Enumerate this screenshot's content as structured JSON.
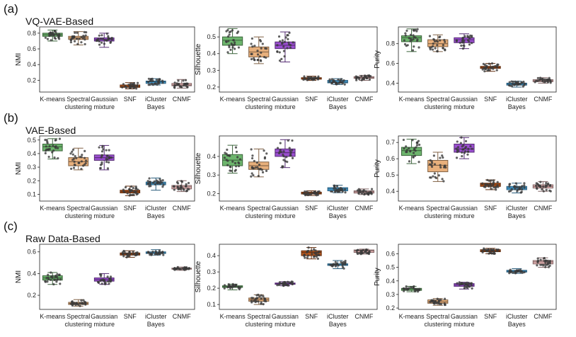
{
  "figure": {
    "rows": [
      {
        "panel": "(a)",
        "title": "VQ-VAE-Based"
      },
      {
        "panel": "(b)",
        "title": "VAE-Based"
      },
      {
        "panel": "(c)",
        "title": "Raw Data-Based"
      }
    ]
  },
  "methods": [
    {
      "line1": "K-means",
      "line2": "",
      "color": "#6db56d"
    },
    {
      "line1": "Spectral",
      "line2": "clustering",
      "color": "#e8b07c"
    },
    {
      "line1": "Gaussian",
      "line2": "mixture",
      "color": "#9b4fd1"
    },
    {
      "line1": "SNF",
      "line2": "",
      "color": "#b5561d"
    },
    {
      "line1": "iCluster",
      "line2": "Bayes",
      "color": "#4aa8e0"
    },
    {
      "line1": "CNMF",
      "line2": "",
      "color": "#eab8b8"
    }
  ],
  "chart_data": [
    {
      "type": "box",
      "title": "VQ-VAE-Based",
      "panel": "(a)",
      "ylabel": "NMI",
      "ylim": [
        0.05,
        0.88
      ],
      "yticks": [
        0.2,
        0.4,
        0.6,
        0.8
      ],
      "boxes": [
        [
          0.7,
          0.76,
          0.78,
          0.8,
          0.84
        ],
        [
          0.65,
          0.72,
          0.74,
          0.76,
          0.82
        ],
        [
          0.62,
          0.7,
          0.72,
          0.74,
          0.8
        ],
        [
          0.09,
          0.11,
          0.12,
          0.14,
          0.17
        ],
        [
          0.14,
          0.16,
          0.18,
          0.19,
          0.22
        ],
        [
          0.1,
          0.13,
          0.14,
          0.16,
          0.21
        ]
      ]
    },
    {
      "type": "box",
      "title": "VQ-VAE-Based",
      "panel": "(a)",
      "ylabel": "Silhouette",
      "ylim": [
        0.17,
        0.56
      ],
      "yticks": [
        0.2,
        0.3,
        0.4,
        0.5
      ],
      "boxes": [
        [
          0.4,
          0.45,
          0.48,
          0.5,
          0.55
        ],
        [
          0.34,
          0.38,
          0.41,
          0.44,
          0.5
        ],
        [
          0.35,
          0.43,
          0.45,
          0.47,
          0.53
        ],
        [
          0.24,
          0.247,
          0.25,
          0.256,
          0.265
        ],
        [
          0.215,
          0.225,
          0.23,
          0.24,
          0.25
        ],
        [
          0.24,
          0.252,
          0.256,
          0.262,
          0.27
        ]
      ]
    },
    {
      "type": "box",
      "title": "VQ-VAE-Based",
      "panel": "(a)",
      "ylabel": "Purity",
      "ylim": [
        0.31,
        0.97
      ],
      "yticks": [
        0.4,
        0.6,
        0.8
      ],
      "boxes": [
        [
          0.72,
          0.82,
          0.86,
          0.88,
          0.95
        ],
        [
          0.72,
          0.77,
          0.8,
          0.84,
          0.89
        ],
        [
          0.75,
          0.81,
          0.84,
          0.86,
          0.9
        ],
        [
          0.52,
          0.55,
          0.56,
          0.57,
          0.6
        ],
        [
          0.36,
          0.38,
          0.39,
          0.4,
          0.42
        ],
        [
          0.4,
          0.415,
          0.425,
          0.435,
          0.455
        ]
      ]
    },
    {
      "type": "box",
      "title": "VAE-Based",
      "panel": "(b)",
      "ylabel": "NMI",
      "ylim": [
        0.05,
        0.53
      ],
      "yticks": [
        0.1,
        0.2,
        0.3,
        0.4,
        0.5
      ],
      "boxes": [
        [
          0.36,
          0.42,
          0.45,
          0.47,
          0.51
        ],
        [
          0.28,
          0.31,
          0.34,
          0.37,
          0.44
        ],
        [
          0.28,
          0.35,
          0.37,
          0.39,
          0.46
        ],
        [
          0.09,
          0.11,
          0.12,
          0.13,
          0.16
        ],
        [
          0.13,
          0.17,
          0.18,
          0.19,
          0.22
        ],
        [
          0.12,
          0.14,
          0.155,
          0.165,
          0.2
        ]
      ]
    },
    {
      "type": "box",
      "title": "VAE-Based",
      "panel": "(b)",
      "ylabel": "Silhouette",
      "ylim": [
        0.16,
        0.51
      ],
      "yticks": [
        0.2,
        0.3,
        0.4
      ],
      "boxes": [
        [
          0.31,
          0.35,
          0.38,
          0.41,
          0.46
        ],
        [
          0.29,
          0.33,
          0.35,
          0.37,
          0.44
        ],
        [
          0.34,
          0.4,
          0.42,
          0.44,
          0.49
        ],
        [
          0.19,
          0.198,
          0.202,
          0.208,
          0.215
        ],
        [
          0.205,
          0.215,
          0.225,
          0.232,
          0.245
        ],
        [
          0.195,
          0.203,
          0.21,
          0.215,
          0.225
        ]
      ]
    },
    {
      "type": "box",
      "title": "VAE-Based",
      "panel": "(b)",
      "ylabel": "Purity",
      "ylim": [
        0.34,
        0.74
      ],
      "yticks": [
        0.4,
        0.5,
        0.6,
        0.7
      ],
      "boxes": [
        [
          0.57,
          0.62,
          0.65,
          0.67,
          0.72
        ],
        [
          0.46,
          0.52,
          0.56,
          0.59,
          0.64
        ],
        [
          0.6,
          0.64,
          0.66,
          0.69,
          0.73
        ],
        [
          0.41,
          0.43,
          0.44,
          0.45,
          0.47
        ],
        [
          0.39,
          0.41,
          0.42,
          0.43,
          0.45
        ],
        [
          0.4,
          0.42,
          0.43,
          0.44,
          0.46
        ]
      ]
    },
    {
      "type": "box",
      "title": "Raw Data-Based",
      "panel": "(c)",
      "ylabel": "NMI",
      "ylim": [
        0.07,
        0.67
      ],
      "yticks": [
        0.2,
        0.4,
        0.6
      ],
      "boxes": [
        [
          0.3,
          0.34,
          0.36,
          0.38,
          0.41
        ],
        [
          0.1,
          0.115,
          0.125,
          0.135,
          0.16
        ],
        [
          0.3,
          0.33,
          0.345,
          0.36,
          0.4
        ],
        [
          0.55,
          0.57,
          0.58,
          0.59,
          0.61
        ],
        [
          0.57,
          0.585,
          0.59,
          0.6,
          0.62
        ],
        [
          0.43,
          0.44,
          0.445,
          0.45,
          0.46
        ]
      ]
    },
    {
      "type": "box",
      "title": "Raw Data-Based",
      "panel": "(c)",
      "ylabel": "Silhouette",
      "ylim": [
        0.07,
        0.47
      ],
      "yticks": [
        0.1,
        0.2,
        0.3,
        0.4
      ],
      "boxes": [
        [
          0.19,
          0.205,
          0.21,
          0.215,
          0.225
        ],
        [
          0.1,
          0.12,
          0.13,
          0.14,
          0.16
        ],
        [
          0.215,
          0.224,
          0.228,
          0.232,
          0.24
        ],
        [
          0.38,
          0.4,
          0.42,
          0.43,
          0.45
        ],
        [
          0.32,
          0.34,
          0.345,
          0.35,
          0.37
        ],
        [
          0.41,
          0.42,
          0.43,
          0.435,
          0.44
        ]
      ]
    },
    {
      "type": "box",
      "title": "Raw Data-Based",
      "panel": "(c)",
      "ylabel": "Purity",
      "ylim": [
        0.19,
        0.67
      ],
      "yticks": [
        0.2,
        0.3,
        0.4,
        0.5,
        0.6
      ],
      "boxes": [
        [
          0.32,
          0.33,
          0.34,
          0.345,
          0.36
        ],
        [
          0.22,
          0.235,
          0.245,
          0.26,
          0.27
        ],
        [
          0.34,
          0.36,
          0.37,
          0.38,
          0.39
        ],
        [
          0.6,
          0.615,
          0.62,
          0.63,
          0.64
        ],
        [
          0.455,
          0.465,
          0.47,
          0.478,
          0.49
        ],
        [
          0.5,
          0.525,
          0.54,
          0.55,
          0.57
        ]
      ]
    }
  ]
}
